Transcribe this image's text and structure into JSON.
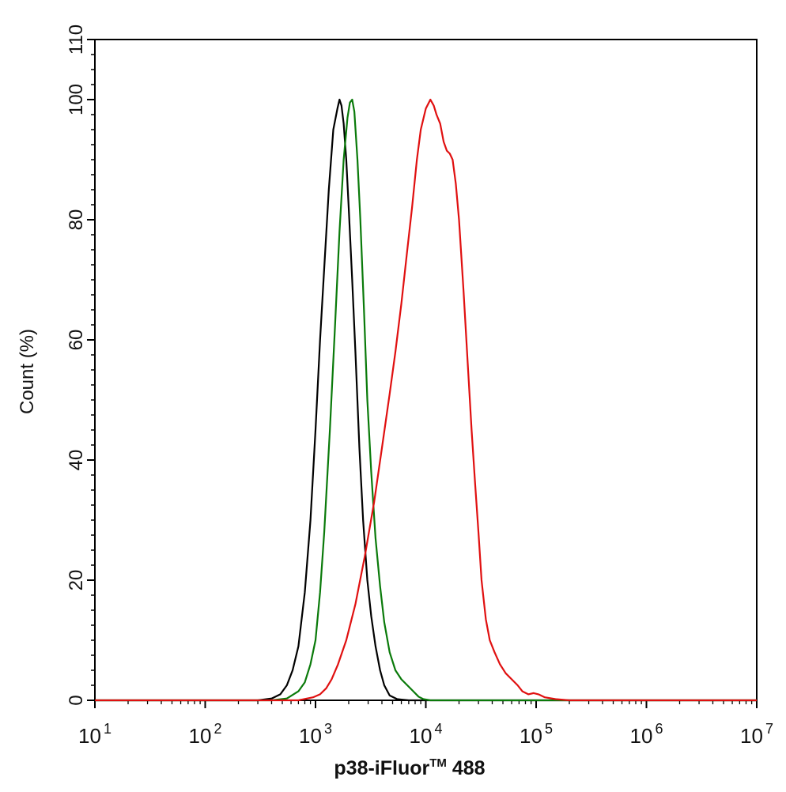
{
  "chart_data": {
    "type": "line",
    "xlabel": "p38-iFluor",
    "xlabel_sup": "TM",
    "xlabel_suffix": " 488",
    "ylabel": "Count  (%)",
    "xscale": "log",
    "xlim": [
      10,
      10000000
    ],
    "ylim": [
      0,
      110
    ],
    "grid": false,
    "legend": "none",
    "x_ticks": [
      {
        "base": "10",
        "exp": "1",
        "value": 10
      },
      {
        "base": "10",
        "exp": "2",
        "value": 100
      },
      {
        "base": "10",
        "exp": "3",
        "value": 1000
      },
      {
        "base": "10",
        "exp": "4",
        "value": 10000
      },
      {
        "base": "10",
        "exp": "5",
        "value": 100000
      },
      {
        "base": "10",
        "exp": "6",
        "value": 1000000
      },
      {
        "base": "10",
        "exp": "7",
        "value": 10000000
      }
    ],
    "y_ticks": [
      "0",
      "20",
      "40",
      "60",
      "80",
      "100",
      "110"
    ],
    "series": [
      {
        "color": "#000000",
        "points": [
          [
            10,
            0
          ],
          [
            200,
            0
          ],
          [
            300,
            0
          ],
          [
            400,
            0.3
          ],
          [
            480,
            1
          ],
          [
            550,
            2.5
          ],
          [
            620,
            5
          ],
          [
            700,
            9
          ],
          [
            800,
            18
          ],
          [
            900,
            30
          ],
          [
            1000,
            45
          ],
          [
            1100,
            60
          ],
          [
            1200,
            72
          ],
          [
            1320,
            85
          ],
          [
            1450,
            95
          ],
          [
            1580,
            98.5
          ],
          [
            1650,
            100
          ],
          [
            1720,
            99
          ],
          [
            1800,
            96
          ],
          [
            1900,
            90
          ],
          [
            2000,
            82
          ],
          [
            2150,
            70
          ],
          [
            2300,
            58
          ],
          [
            2500,
            42
          ],
          [
            2700,
            30
          ],
          [
            2950,
            20
          ],
          [
            3200,
            14
          ],
          [
            3500,
            9
          ],
          [
            3850,
            5
          ],
          [
            4200,
            2.5
          ],
          [
            4700,
            0.8
          ],
          [
            5500,
            0.2
          ],
          [
            7000,
            0
          ],
          [
            10000000,
            0
          ]
        ]
      },
      {
        "color": "#0a7a0a",
        "points": [
          [
            10,
            0
          ],
          [
            400,
            0
          ],
          [
            550,
            0.3
          ],
          [
            700,
            1.5
          ],
          [
            800,
            3
          ],
          [
            900,
            6
          ],
          [
            1000,
            10
          ],
          [
            1100,
            18
          ],
          [
            1200,
            28
          ],
          [
            1350,
            45
          ],
          [
            1500,
            62
          ],
          [
            1650,
            78
          ],
          [
            1800,
            90
          ],
          [
            1950,
            97
          ],
          [
            2050,
            99.5
          ],
          [
            2150,
            100
          ],
          [
            2250,
            98
          ],
          [
            2400,
            90
          ],
          [
            2550,
            80
          ],
          [
            2750,
            65
          ],
          [
            2950,
            50
          ],
          [
            3200,
            38
          ],
          [
            3500,
            27
          ],
          [
            3850,
            19
          ],
          [
            4200,
            13
          ],
          [
            4700,
            8
          ],
          [
            5300,
            5
          ],
          [
            6000,
            3.5
          ],
          [
            6800,
            2.5
          ],
          [
            7700,
            1.5
          ],
          [
            8600,
            0.6
          ],
          [
            9500,
            0.2
          ],
          [
            11000,
            0
          ],
          [
            10000000,
            0
          ]
        ]
      },
      {
        "color": "#e01010",
        "points": [
          [
            10,
            0
          ],
          [
            700,
            0
          ],
          [
            950,
            0.5
          ],
          [
            1100,
            1
          ],
          [
            1250,
            2
          ],
          [
            1400,
            3.5
          ],
          [
            1600,
            6
          ],
          [
            1900,
            10
          ],
          [
            2300,
            16
          ],
          [
            2800,
            24
          ],
          [
            3400,
            33
          ],
          [
            4000,
            42
          ],
          [
            4700,
            51
          ],
          [
            5300,
            58
          ],
          [
            6000,
            66
          ],
          [
            6700,
            74
          ],
          [
            7500,
            82
          ],
          [
            8300,
            90
          ],
          [
            9000,
            95
          ],
          [
            10000,
            98.5
          ],
          [
            11000,
            100
          ],
          [
            11800,
            99
          ],
          [
            12500,
            97.5
          ],
          [
            13500,
            96
          ],
          [
            14500,
            93
          ],
          [
            15500,
            91.5
          ],
          [
            16500,
            91
          ],
          [
            17500,
            90
          ],
          [
            18700,
            86
          ],
          [
            20000,
            80
          ],
          [
            22000,
            68
          ],
          [
            24000,
            56
          ],
          [
            26000,
            45
          ],
          [
            28000,
            36
          ],
          [
            30000,
            28
          ],
          [
            32000,
            20
          ],
          [
            35000,
            13.5
          ],
          [
            38000,
            10
          ],
          [
            42000,
            8
          ],
          [
            47000,
            6
          ],
          [
            53000,
            4.5
          ],
          [
            60000,
            3.5
          ],
          [
            68000,
            2.5
          ],
          [
            75000,
            1.5
          ],
          [
            85000,
            1
          ],
          [
            95000,
            1.2
          ],
          [
            105000,
            1
          ],
          [
            120000,
            0.5
          ],
          [
            150000,
            0.2
          ],
          [
            200000,
            0
          ],
          [
            10000000,
            0
          ]
        ]
      }
    ]
  }
}
